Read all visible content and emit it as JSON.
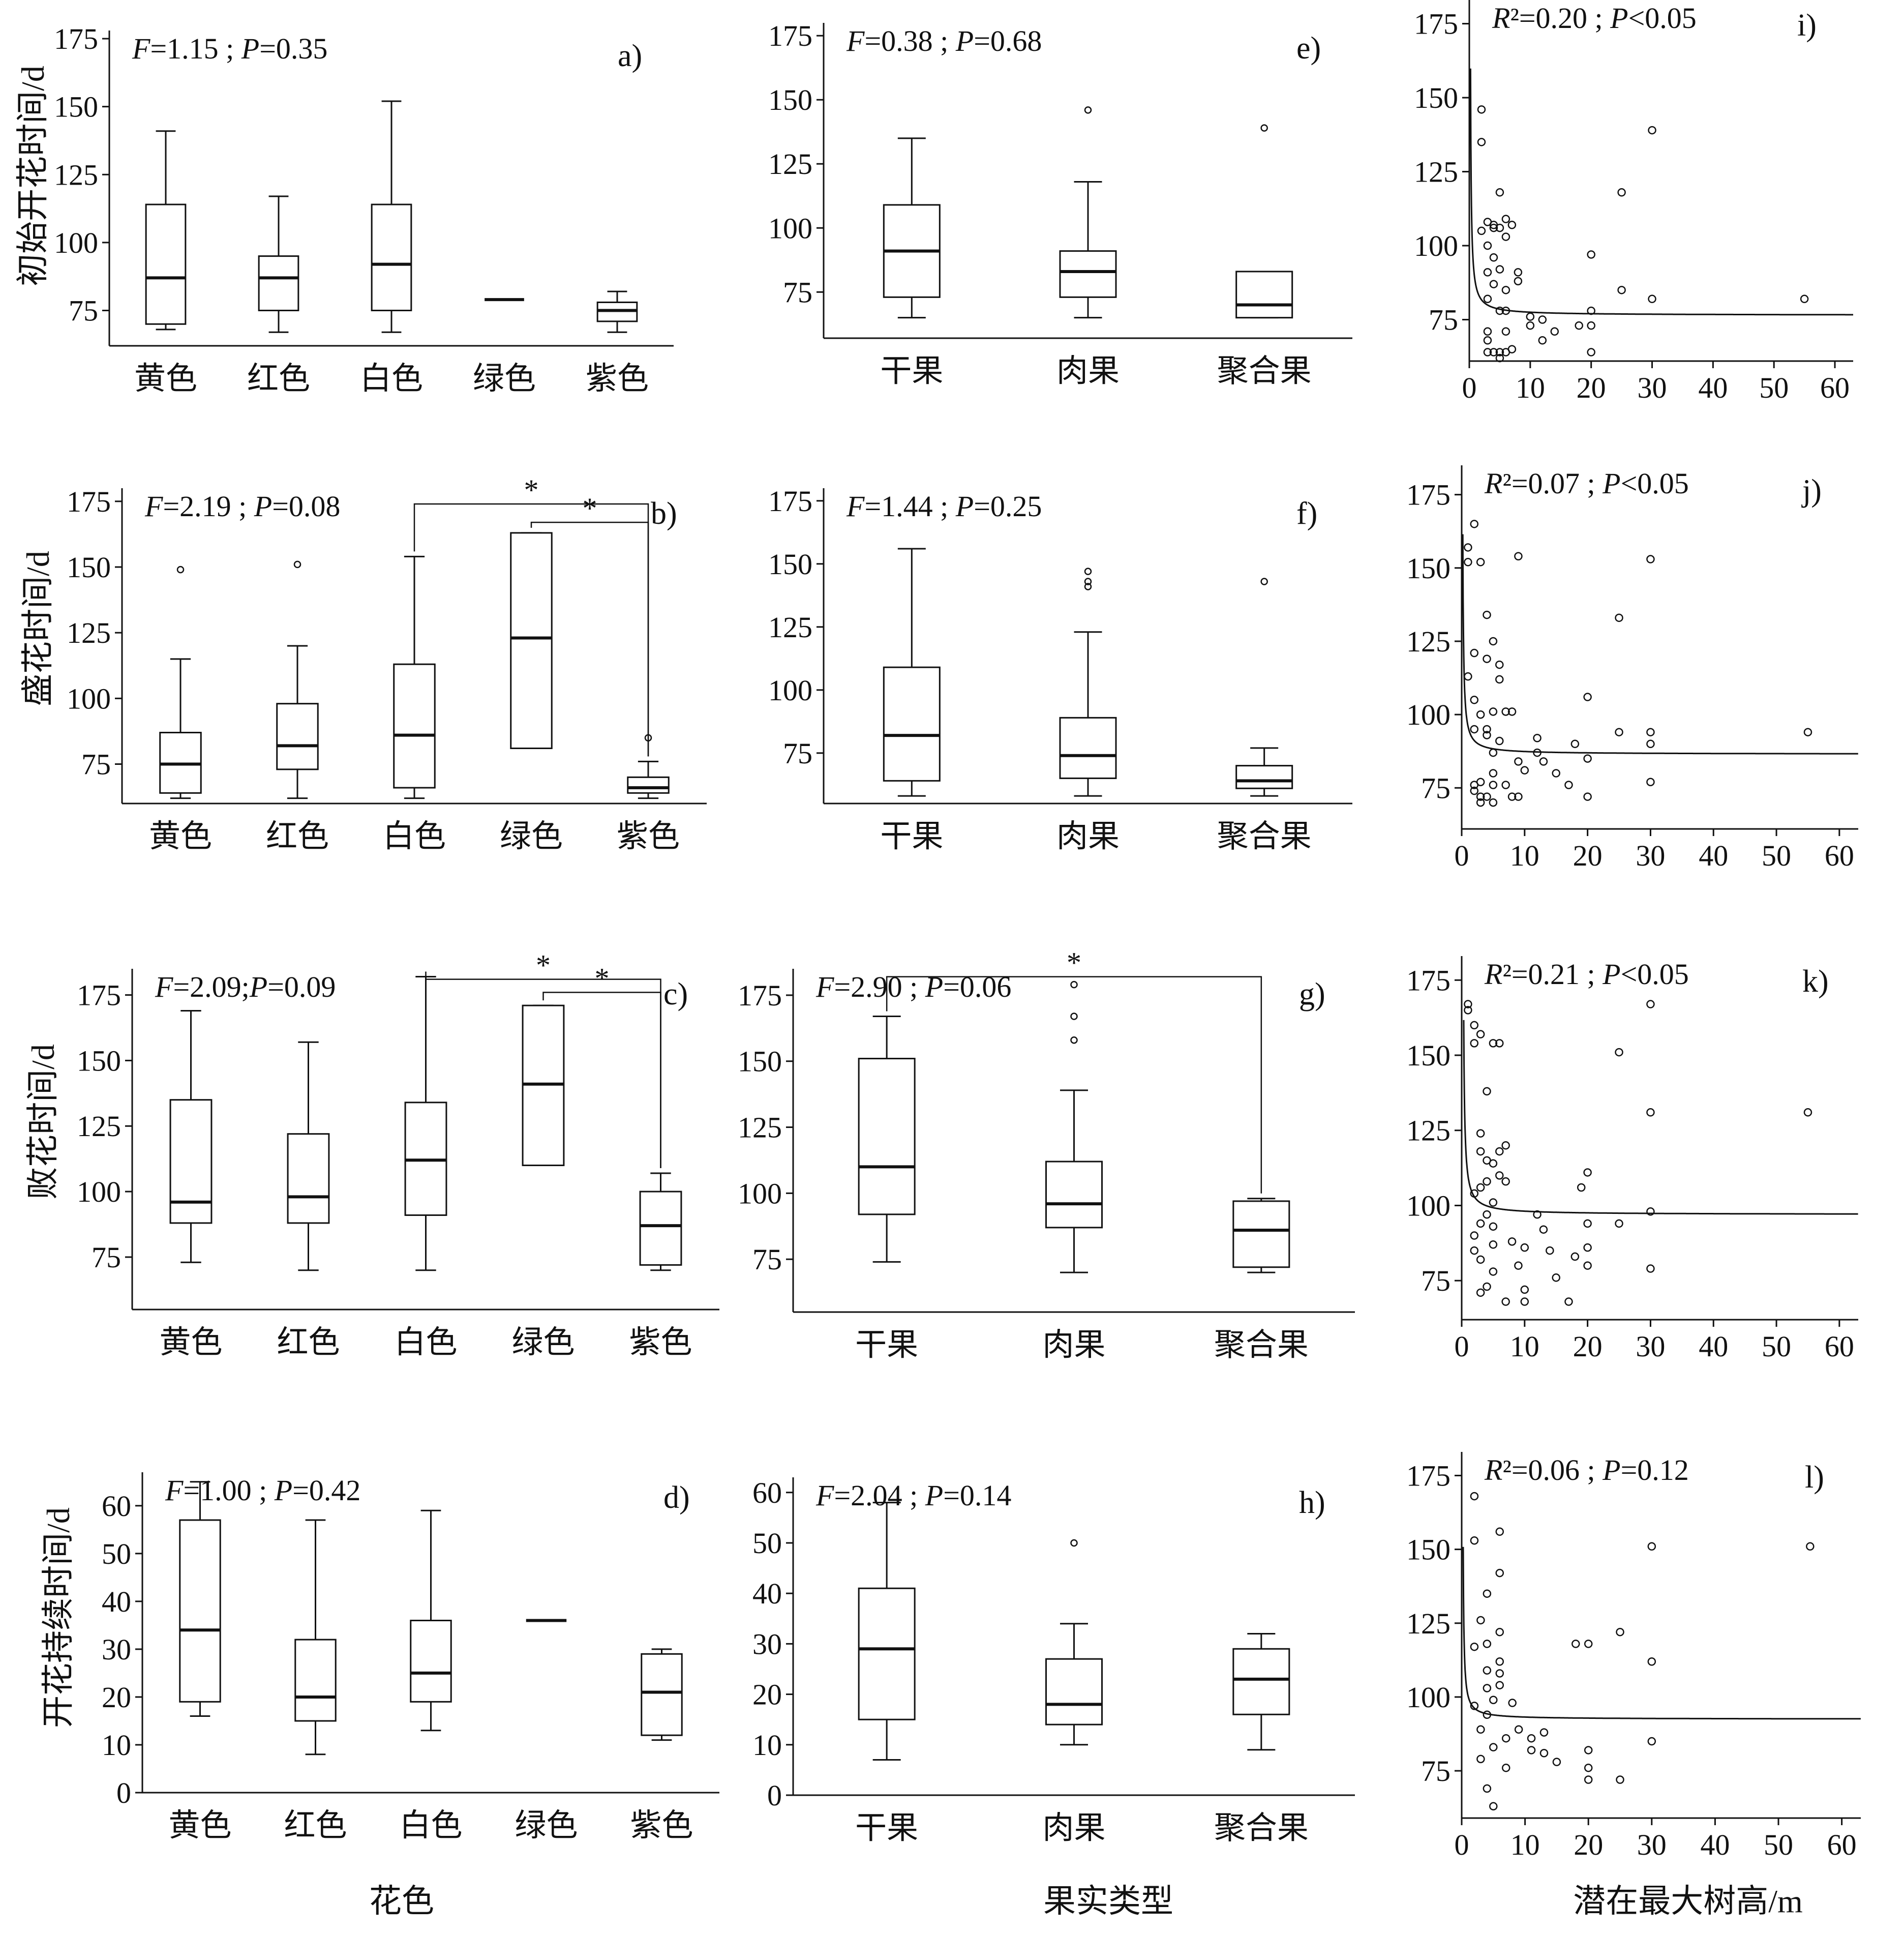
{
  "x_titles": [
    "花色",
    "果实类型",
    "潜在最大树高/m"
  ],
  "row_y_labels": [
    "初始开花时间/d",
    "盛花时间/d",
    "败花时间/d",
    "开花持续时间/d"
  ],
  "chart_data": [
    {
      "type": "box",
      "label": "a)",
      "stat": "F=1.15 ; P=0.35",
      "categories": [
        "黄色",
        "红色",
        "白色",
        "绿色",
        "紫色"
      ],
      "yticks": [
        75,
        100,
        125,
        150,
        175
      ],
      "ylim": [
        62,
        178
      ],
      "boxes": [
        {
          "min": 68,
          "q1": 70,
          "median": 87,
          "q3": 114,
          "max": 141
        },
        {
          "min": 67,
          "q1": 75,
          "median": 87,
          "q3": 95,
          "max": 117
        },
        {
          "min": 67,
          "q1": 75,
          "median": 92,
          "q3": 114,
          "max": 152
        },
        {
          "min": 79,
          "q1": 79,
          "median": 79,
          "q3": 79,
          "max": 79
        },
        {
          "min": 67,
          "q1": 71,
          "median": 75,
          "q3": 78,
          "max": 82
        }
      ],
      "outliers": []
    },
    {
      "type": "box",
      "label": "b)",
      "stat": "F=2.19 ; P=0.08",
      "categories": [
        "黄色",
        "红色",
        "白色",
        "绿色",
        "紫色"
      ],
      "yticks": [
        75,
        100,
        125,
        150,
        175
      ],
      "ylim": [
        60,
        180
      ],
      "boxes": [
        {
          "min": 62,
          "q1": 64,
          "median": 75,
          "q3": 87,
          "max": 115
        },
        {
          "min": 62,
          "q1": 73,
          "median": 82,
          "q3": 98,
          "max": 120
        },
        {
          "min": 62,
          "q1": 66,
          "median": 86,
          "q3": 113,
          "max": 154
        },
        {
          "min": 81,
          "q1": 81,
          "median": 123,
          "q3": 163,
          "max": 163
        },
        {
          "min": 62,
          "q1": 64,
          "median": 66,
          "q3": 70,
          "max": 76
        }
      ],
      "outliers": [
        [
          0,
          149
        ],
        [
          1,
          151
        ],
        [
          4,
          85
        ]
      ],
      "brackets": [
        {
          "from": 2,
          "to": 4,
          "value": 174,
          "mark": "*"
        },
        {
          "from": 3,
          "to": 4,
          "value": 167,
          "mark": "*"
        }
      ]
    },
    {
      "type": "box",
      "label": "c)",
      "stat": "F=2.09;P=0.09",
      "categories": [
        "黄色",
        "红色",
        "白色",
        "绿色",
        "紫色"
      ],
      "yticks": [
        75,
        100,
        125,
        150,
        175
      ],
      "ylim": [
        55,
        185
      ],
      "boxes": [
        {
          "min": 73,
          "q1": 88,
          "median": 96,
          "q3": 135,
          "max": 169
        },
        {
          "min": 70,
          "q1": 88,
          "median": 98,
          "q3": 122,
          "max": 157
        },
        {
          "min": 70,
          "q1": 91,
          "median": 112,
          "q3": 134,
          "max": 182
        },
        {
          "min": 110,
          "q1": 110,
          "median": 141,
          "q3": 171,
          "max": 171
        },
        {
          "min": 70,
          "q1": 72,
          "median": 87,
          "q3": 100,
          "max": 107
        }
      ],
      "outliers": [],
      "brackets": [
        {
          "from": 2,
          "to": 4,
          "value": 181,
          "mark": "*"
        },
        {
          "from": 3,
          "to": 4,
          "value": 176,
          "mark": "*"
        }
      ]
    },
    {
      "type": "box",
      "label": "d)",
      "stat": "F=1.00 ; P=0.42",
      "categories": [
        "黄色",
        "红色",
        "白色",
        "绿色",
        "紫色"
      ],
      "yticks": [
        0,
        10,
        20,
        30,
        40,
        50,
        60
      ],
      "ylim": [
        0,
        67
      ],
      "boxes": [
        {
          "min": 16,
          "q1": 19,
          "median": 34,
          "q3": 57,
          "max": 65
        },
        {
          "min": 8,
          "q1": 15,
          "median": 20,
          "q3": 32,
          "max": 57
        },
        {
          "min": 13,
          "q1": 19,
          "median": 25,
          "q3": 36,
          "max": 59
        },
        {
          "min": 36,
          "q1": 36,
          "median": 36,
          "q3": 36,
          "max": 36
        },
        {
          "min": 11,
          "q1": 12,
          "median": 21,
          "q3": 29,
          "max": 30
        }
      ],
      "outliers": []
    },
    {
      "type": "box",
      "label": "e)",
      "stat": "F=0.38 ; P=0.68",
      "categories": [
        "干果",
        "肉果",
        "聚合果"
      ],
      "yticks": [
        75,
        100,
        125,
        150,
        175
      ],
      "ylim": [
        57,
        180
      ],
      "boxes": [
        {
          "min": 65,
          "q1": 73,
          "median": 91,
          "q3": 109,
          "max": 135
        },
        {
          "min": 65,
          "q1": 73,
          "median": 83,
          "q3": 91,
          "max": 118
        },
        {
          "min": 65,
          "q1": 65,
          "median": 70,
          "q3": 83,
          "max": 83
        }
      ],
      "outliers": [
        [
          1,
          146
        ],
        [
          2,
          139
        ]
      ]
    },
    {
      "type": "box",
      "label": "f)",
      "stat": "F=1.44 ; P=0.25",
      "categories": [
        "干果",
        "肉果",
        "聚合果"
      ],
      "yticks": [
        75,
        100,
        125,
        150,
        175
      ],
      "ylim": [
        55,
        180
      ],
      "boxes": [
        {
          "min": 58,
          "q1": 64,
          "median": 82,
          "q3": 109,
          "max": 156
        },
        {
          "min": 58,
          "q1": 65,
          "median": 74,
          "q3": 89,
          "max": 123
        },
        {
          "min": 58,
          "q1": 61,
          "median": 64,
          "q3": 70,
          "max": 77
        }
      ],
      "outliers": [
        [
          1,
          147
        ],
        [
          1,
          143
        ],
        [
          1,
          141
        ],
        [
          2,
          143
        ]
      ]
    },
    {
      "type": "box",
      "label": "g)",
      "stat": "F=2.90 ; P=0.06",
      "categories": [
        "干果",
        "肉果",
        "聚合果"
      ],
      "yticks": [
        75,
        100,
        125,
        150,
        175
      ],
      "ylim": [
        55,
        185
      ],
      "boxes": [
        {
          "min": 74,
          "q1": 92,
          "median": 110,
          "q3": 151,
          "max": 167
        },
        {
          "min": 70,
          "q1": 87,
          "median": 96,
          "q3": 112,
          "max": 139
        },
        {
          "min": 70,
          "q1": 72,
          "median": 86,
          "q3": 97,
          "max": 98
        }
      ],
      "outliers": [
        [
          1,
          179
        ],
        [
          1,
          167
        ],
        [
          1,
          158
        ]
      ],
      "brackets": [
        {
          "from": 0,
          "to": 2,
          "value": 182,
          "mark": "*"
        }
      ]
    },
    {
      "type": "box",
      "label": "h)",
      "stat": "F=2.04 ; P=0.14",
      "categories": [
        "干果",
        "肉果",
        "聚合果"
      ],
      "yticks": [
        0,
        10,
        20,
        30,
        40,
        50,
        60
      ],
      "ylim": [
        0,
        63
      ],
      "boxes": [
        {
          "min": 7,
          "q1": 15,
          "median": 29,
          "q3": 41,
          "max": 58
        },
        {
          "min": 10,
          "q1": 14,
          "median": 18,
          "q3": 27,
          "max": 34
        },
        {
          "min": 9,
          "q1": 16,
          "median": 23,
          "q3": 29,
          "max": 32
        }
      ],
      "outliers": [
        [
          1,
          50
        ]
      ]
    },
    {
      "type": "scatter",
      "label": "i)",
      "stat": "R²=0.20 ; P<0.05",
      "xticks": [
        0,
        10,
        20,
        30,
        40,
        50,
        60
      ],
      "xlim": [
        0,
        63
      ],
      "yticks": [
        75,
        100,
        125,
        150,
        175
      ],
      "ylim": [
        61,
        183
      ],
      "fit": {
        "a": 76.5,
        "b": 10.0,
        "x0": 0.08
      },
      "points": [
        [
          2,
          146
        ],
        [
          2,
          135
        ],
        [
          2,
          105
        ],
        [
          3,
          108
        ],
        [
          3,
          100
        ],
        [
          3,
          91
        ],
        [
          3,
          82
        ],
        [
          3,
          71
        ],
        [
          3,
          68
        ],
        [
          3,
          64
        ],
        [
          4,
          107
        ],
        [
          4,
          106
        ],
        [
          4,
          96
        ],
        [
          4,
          87
        ],
        [
          4,
          64
        ],
        [
          5,
          118
        ],
        [
          5,
          106
        ],
        [
          5,
          92
        ],
        [
          5,
          78
        ],
        [
          5,
          64
        ],
        [
          5,
          62
        ],
        [
          6,
          109
        ],
        [
          6,
          103
        ],
        [
          6,
          85
        ],
        [
          6,
          78
        ],
        [
          6,
          71
        ],
        [
          6,
          64
        ],
        [
          7,
          107
        ],
        [
          7,
          65
        ],
        [
          8,
          88
        ],
        [
          8,
          91
        ],
        [
          10,
          76
        ],
        [
          10,
          73
        ],
        [
          12,
          75
        ],
        [
          12,
          68
        ],
        [
          14,
          71
        ],
        [
          18,
          73
        ],
        [
          20,
          97
        ],
        [
          20,
          78
        ],
        [
          20,
          73
        ],
        [
          20,
          64
        ],
        [
          25,
          118
        ],
        [
          25,
          85
        ],
        [
          30,
          139
        ],
        [
          30,
          82
        ],
        [
          55,
          82
        ]
      ]
    },
    {
      "type": "scatter",
      "label": "j)",
      "stat": "R²=0.07 ; P<0.05",
      "xticks": [
        0,
        10,
        20,
        30,
        40,
        50,
        60
      ],
      "xlim": [
        0,
        63
      ],
      "yticks": [
        75,
        100,
        125,
        150,
        175
      ],
      "ylim": [
        61,
        185
      ],
      "fit": {
        "a": 86.5,
        "b": 9.0,
        "x0": 0.06
      },
      "points": [
        [
          1,
          157
        ],
        [
          1,
          152
        ],
        [
          1,
          113
        ],
        [
          2,
          165
        ],
        [
          2,
          121
        ],
        [
          2,
          105
        ],
        [
          2,
          95
        ],
        [
          2,
          76
        ],
        [
          2,
          74
        ],
        [
          3,
          152
        ],
        [
          3,
          100
        ],
        [
          3,
          77
        ],
        [
          3,
          72
        ],
        [
          3,
          70
        ],
        [
          4,
          134
        ],
        [
          4,
          119
        ],
        [
          4,
          95
        ],
        [
          4,
          93
        ],
        [
          4,
          72
        ],
        [
          5,
          125
        ],
        [
          5,
          101
        ],
        [
          5,
          87
        ],
        [
          5,
          80
        ],
        [
          5,
          76
        ],
        [
          5,
          70
        ],
        [
          6,
          117
        ],
        [
          6,
          112
        ],
        [
          6,
          91
        ],
        [
          7,
          101
        ],
        [
          7,
          76
        ],
        [
          8,
          101
        ],
        [
          8,
          72
        ],
        [
          9,
          154
        ],
        [
          9,
          84
        ],
        [
          9,
          72
        ],
        [
          10,
          81
        ],
        [
          12,
          87
        ],
        [
          12,
          92
        ],
        [
          13,
          84
        ],
        [
          15,
          80
        ],
        [
          17,
          76
        ],
        [
          18,
          90
        ],
        [
          20,
          106
        ],
        [
          20,
          85
        ],
        [
          20,
          72
        ],
        [
          25,
          133
        ],
        [
          25,
          94
        ],
        [
          30,
          153
        ],
        [
          30,
          94
        ],
        [
          30,
          90
        ],
        [
          30,
          77
        ],
        [
          55,
          94
        ]
      ]
    },
    {
      "type": "scatter",
      "label": "k)",
      "stat": "R²=0.21 ; P<0.05",
      "xticks": [
        0,
        10,
        20,
        30,
        40,
        50,
        60
      ],
      "xlim": [
        0,
        63
      ],
      "yticks": [
        75,
        100,
        125,
        150,
        175
      ],
      "ylim": [
        62,
        183
      ],
      "fit": {
        "a": 97.0,
        "b": 11.0,
        "x0": 0.15
      },
      "points": [
        [
          1,
          167
        ],
        [
          1,
          165
        ],
        [
          2,
          160
        ],
        [
          2,
          154
        ],
        [
          2,
          104
        ],
        [
          2,
          90
        ],
        [
          2,
          85
        ],
        [
          3,
          157
        ],
        [
          3,
          124
        ],
        [
          3,
          118
        ],
        [
          3,
          106
        ],
        [
          3,
          94
        ],
        [
          3,
          82
        ],
        [
          3,
          71
        ],
        [
          4,
          138
        ],
        [
          4,
          115
        ],
        [
          4,
          108
        ],
        [
          4,
          97
        ],
        [
          4,
          73
        ],
        [
          5,
          154
        ],
        [
          5,
          114
        ],
        [
          5,
          101
        ],
        [
          5,
          93
        ],
        [
          5,
          87
        ],
        [
          5,
          78
        ],
        [
          6,
          154
        ],
        [
          6,
          118
        ],
        [
          6,
          110
        ],
        [
          7,
          120
        ],
        [
          7,
          108
        ],
        [
          7,
          68
        ],
        [
          8,
          88
        ],
        [
          9,
          80
        ],
        [
          10,
          86
        ],
        [
          10,
          72
        ],
        [
          10,
          68
        ],
        [
          12,
          97
        ],
        [
          13,
          92
        ],
        [
          14,
          85
        ],
        [
          15,
          76
        ],
        [
          17,
          68
        ],
        [
          18,
          83
        ],
        [
          19,
          106
        ],
        [
          20,
          111
        ],
        [
          20,
          94
        ],
        [
          20,
          86
        ],
        [
          20,
          80
        ],
        [
          25,
          151
        ],
        [
          25,
          94
        ],
        [
          30,
          167
        ],
        [
          30,
          131
        ],
        [
          30,
          98
        ],
        [
          30,
          79
        ],
        [
          55,
          131
        ]
      ]
    },
    {
      "type": "scatter",
      "label": "l)",
      "stat": "R²=0.06 ; P=0.12",
      "xticks": [
        0,
        10,
        20,
        30,
        40,
        50,
        60
      ],
      "xlim": [
        0,
        63
      ],
      "yticks": [
        75,
        100,
        125,
        150,
        175
      ],
      "ylim": [
        59,
        183
      ],
      "fit": {
        "a": 92.5,
        "b": 7.0,
        "x0": 0.12
      },
      "points": [
        [
          2,
          168
        ],
        [
          2,
          153
        ],
        [
          2,
          117
        ],
        [
          2,
          97
        ],
        [
          3,
          126
        ],
        [
          3,
          89
        ],
        [
          3,
          79
        ],
        [
          4,
          135
        ],
        [
          4,
          118
        ],
        [
          4,
          109
        ],
        [
          4,
          103
        ],
        [
          4,
          94
        ],
        [
          4,
          69
        ],
        [
          5,
          99
        ],
        [
          5,
          83
        ],
        [
          5,
          63
        ],
        [
          6,
          156
        ],
        [
          6,
          142
        ],
        [
          6,
          122
        ],
        [
          6,
          112
        ],
        [
          6,
          108
        ],
        [
          6,
          104
        ],
        [
          7,
          86
        ],
        [
          7,
          76
        ],
        [
          8,
          98
        ],
        [
          9,
          89
        ],
        [
          11,
          86
        ],
        [
          11,
          82
        ],
        [
          13,
          88
        ],
        [
          13,
          81
        ],
        [
          15,
          78
        ],
        [
          18,
          118
        ],
        [
          20,
          118
        ],
        [
          20,
          82
        ],
        [
          20,
          76
        ],
        [
          20,
          72
        ],
        [
          25,
          72
        ],
        [
          25,
          122
        ],
        [
          30,
          151
        ],
        [
          30,
          112
        ],
        [
          30,
          85
        ],
        [
          55,
          151
        ]
      ]
    }
  ]
}
